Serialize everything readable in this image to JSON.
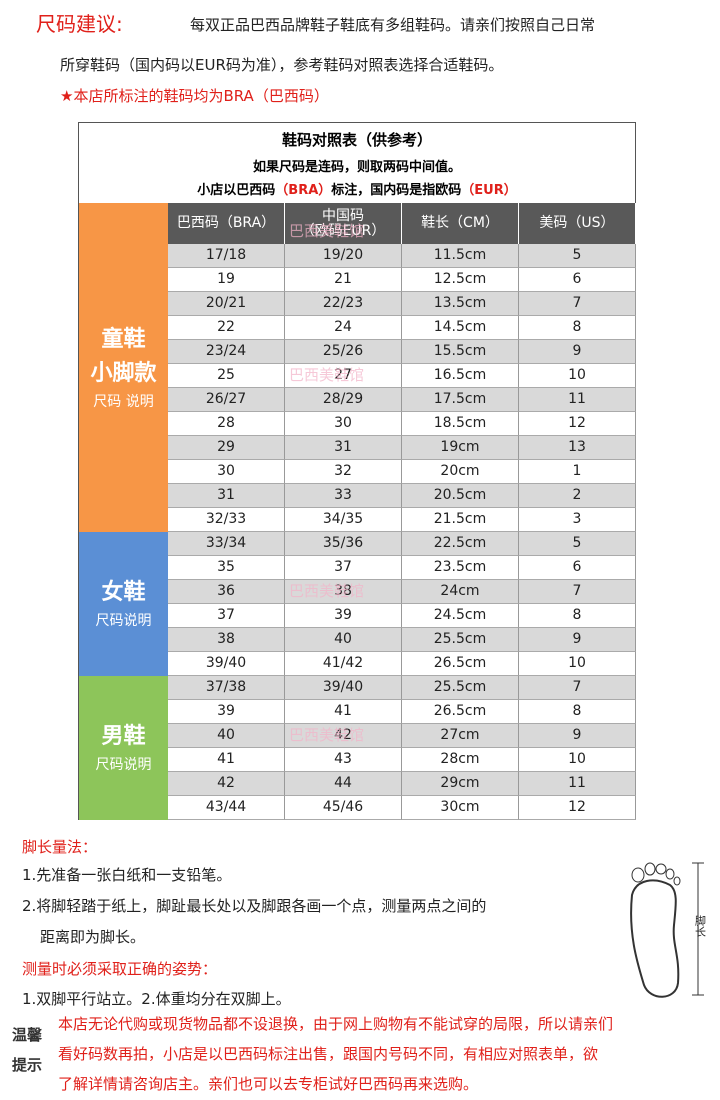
{
  "header": {
    "label": "尺码建议:",
    "line1": "每双正品巴西品牌鞋子鞋底有多组鞋码。请亲们按照自己日常",
    "line2": "所穿鞋码（国内码以EUR码为准），参考鞋码对照表选择合适鞋码。",
    "notice": "★本店所标注的鞋码均为BRA（巴西码）"
  },
  "table": {
    "title": "鞋码对照表（供参考）",
    "note1": "如果尺码是连码，则取两码中间值。",
    "note2": [
      "小店以巴西码",
      "（BRA）",
      "标注，国内码是指欧码",
      "（EUR）"
    ],
    "watermark": "巴西美鞋馆",
    "columns": [
      [
        "巴西码（BRA）"
      ],
      [
        "中国码",
        "（欧码EUR）"
      ],
      [
        "鞋长（CM）"
      ],
      [
        "美码（US）"
      ]
    ],
    "groups": [
      {
        "title": "童鞋",
        "subtitle": "小脚款",
        "note": "尺码 说明",
        "color": "#f79646",
        "rows": [
          [
            "17/18",
            "19/20",
            "11.5cm",
            "5"
          ],
          [
            "19",
            "21",
            "12.5cm",
            "6"
          ],
          [
            "20/21",
            "22/23",
            "13.5cm",
            "7"
          ],
          [
            "22",
            "24",
            "14.5cm",
            "8"
          ],
          [
            "23/24",
            "25/26",
            "15.5cm",
            "9"
          ],
          [
            "25",
            "27",
            "16.5cm",
            "10"
          ],
          [
            "26/27",
            "28/29",
            "17.5cm",
            "11"
          ],
          [
            "28",
            "30",
            "18.5cm",
            "12"
          ],
          [
            "29",
            "31",
            "19cm",
            "13"
          ],
          [
            "30",
            "32",
            "20cm",
            "1"
          ],
          [
            "31",
            "33",
            "20.5cm",
            "2"
          ],
          [
            "32/33",
            "34/35",
            "21.5cm",
            "3"
          ]
        ]
      },
      {
        "title": "女鞋",
        "note": "尺码说明",
        "color": "#5b8fd5",
        "rows": [
          [
            "33/34",
            "35/36",
            "22.5cm",
            "5"
          ],
          [
            "35",
            "37",
            "23.5cm",
            "6"
          ],
          [
            "36",
            "38",
            "24cm",
            "7"
          ],
          [
            "37",
            "39",
            "24.5cm",
            "8"
          ],
          [
            "38",
            "40",
            "25.5cm",
            "9"
          ],
          [
            "39/40",
            "41/42",
            "26.5cm",
            "10"
          ]
        ]
      },
      {
        "title": "男鞋",
        "note": "尺码说明",
        "color": "#8dc55a",
        "rows": [
          [
            "37/38",
            "39/40",
            "25.5cm",
            "7"
          ],
          [
            "39",
            "41",
            "26.5cm",
            "8"
          ],
          [
            "40",
            "42",
            "27cm",
            "9"
          ],
          [
            "41",
            "43",
            "28cm",
            "10"
          ],
          [
            "42",
            "44",
            "29cm",
            "11"
          ],
          [
            "43/44",
            "45/46",
            "30cm",
            "12"
          ]
        ]
      }
    ]
  },
  "measure": {
    "heading": "脚长量法：",
    "step1": "1.先准备一张白纸和一支铅笔。",
    "step2a": "2.将脚轻踏于纸上，脚趾最长处以及脚跟各画一个点，测量两点之间的",
    "step2b": "距离即为脚长。",
    "posture": "测量时必须采取正确的姿势：",
    "posture_steps": "1.双脚平行站立。2.体重均分在双脚上。",
    "diagram_label": "脚长"
  },
  "tips": {
    "badge": "温馨提示",
    "line1": "本店无论代购或现货物品都不设退换，由于网上购物有不能试穿的局限，所以请亲们",
    "line2": "看好码数再拍，小店是以巴西码标注出售，跟国内号码不同，有相应对照表单，欲",
    "line3": "了解详情请咨询店主。亲们也可以去专柜试好巴西码再来选购。"
  }
}
